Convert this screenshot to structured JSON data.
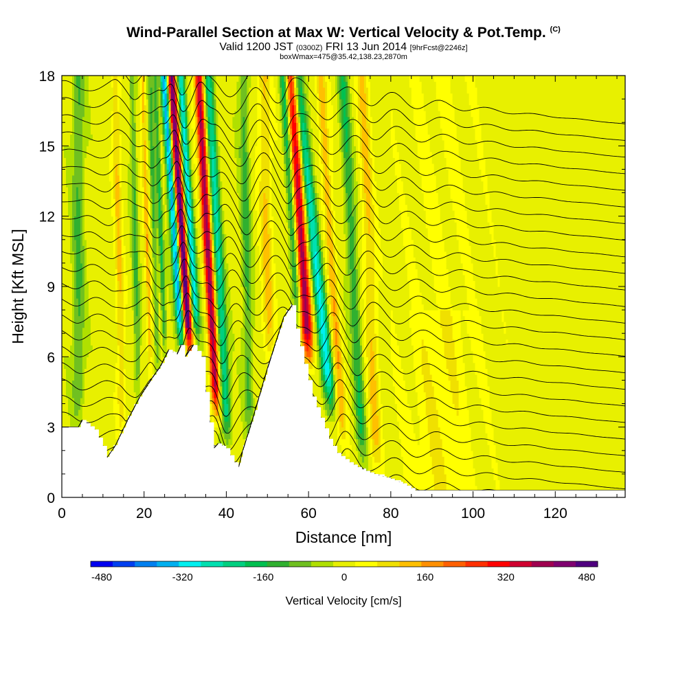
{
  "header": {
    "title_main": "Wind-Parallel Section at Max W: Vertical Velocity & Pot.Temp.",
    "title_mark": "(C)",
    "valid_prefix": "Valid 1200 JST",
    "valid_zulu": "(0300Z)",
    "valid_date": "FRI 13 Jun 2014",
    "valid_fcst": "[9hrFcst@2246z]",
    "box_line": "boxWmax=475@35.42,138.23,2870m"
  },
  "chart_data": {
    "type": "heatmap",
    "title": "Wind-Parallel Section at Max W: Vertical Velocity & Pot.Temp.",
    "xlabel": "Distance [nm]",
    "ylabel": "Height [Kft MSL]",
    "xlim": [
      0,
      137
    ],
    "ylim": [
      0,
      18
    ],
    "x_ticks": [
      0,
      20,
      40,
      60,
      80,
      100,
      120
    ],
    "y_ticks": [
      0,
      3,
      6,
      9,
      12,
      15,
      18
    ],
    "grid": false,
    "colorbar": {
      "title": "Vertical Velocity [cm/s]",
      "tick_values": [
        -480,
        -320,
        -160,
        0,
        160,
        320,
        480
      ],
      "tick_labels": [
        "-480",
        "-320",
        "-160",
        "0",
        "160",
        "320",
        "480"
      ],
      "colors": [
        "#0000f0",
        "#0040f0",
        "#0080f0",
        "#00b0f0",
        "#00f0f0",
        "#00e0b0",
        "#00d080",
        "#00c050",
        "#30b030",
        "#70c020",
        "#b0e000",
        "#e8f000",
        "#ffff00",
        "#f0e000",
        "#ffc000",
        "#ff9000",
        "#ff6000",
        "#ff3000",
        "#ff0000",
        "#d00030",
        "#a00050",
        "#800070",
        "#500080"
      ]
    },
    "terrain": [
      {
        "x": 0,
        "h": 3.0
      },
      {
        "x": 4,
        "h": 3.0
      },
      {
        "x": 5,
        "h": 3.3
      },
      {
        "x": 8,
        "h": 2.9
      },
      {
        "x": 10,
        "h": 2.2
      },
      {
        "x": 11,
        "h": 1.7
      },
      {
        "x": 13,
        "h": 2.2
      },
      {
        "x": 16,
        "h": 3.3
      },
      {
        "x": 19,
        "h": 4.3
      },
      {
        "x": 22,
        "h": 5.1
      },
      {
        "x": 24,
        "h": 5.6
      },
      {
        "x": 26,
        "h": 6.3
      },
      {
        "x": 28,
        "h": 6.1
      },
      {
        "x": 29,
        "h": 6.5
      },
      {
        "x": 30,
        "h": 6.0
      },
      {
        "x": 32,
        "h": 6.5
      },
      {
        "x": 34,
        "h": 6.0
      },
      {
        "x": 35,
        "h": 4.5
      },
      {
        "x": 36,
        "h": 3.2
      },
      {
        "x": 37,
        "h": 2.1
      },
      {
        "x": 38,
        "h": 2.3
      },
      {
        "x": 40,
        "h": 2.1
      },
      {
        "x": 42,
        "h": 1.5
      },
      {
        "x": 43,
        "h": 1.3
      },
      {
        "x": 44,
        "h": 2.0
      },
      {
        "x": 46,
        "h": 3.1
      },
      {
        "x": 48,
        "h": 4.3
      },
      {
        "x": 50,
        "h": 5.5
      },
      {
        "x": 52,
        "h": 6.6
      },
      {
        "x": 54,
        "h": 7.7
      },
      {
        "x": 56,
        "h": 8.2
      },
      {
        "x": 57,
        "h": 7.2
      },
      {
        "x": 59,
        "h": 5.7
      },
      {
        "x": 61,
        "h": 4.3
      },
      {
        "x": 63,
        "h": 3.4
      },
      {
        "x": 65,
        "h": 2.5
      },
      {
        "x": 67,
        "h": 1.9
      },
      {
        "x": 70,
        "h": 1.5
      },
      {
        "x": 73,
        "h": 1.2
      },
      {
        "x": 76,
        "h": 1.0
      },
      {
        "x": 80,
        "h": 0.8
      },
      {
        "x": 83,
        "h": 0.6
      },
      {
        "x": 86,
        "h": 0.3
      },
      {
        "x": 90,
        "h": 0.3
      },
      {
        "x": 137,
        "h": 0.3
      }
    ],
    "w_features": [
      {
        "x0": 30.0,
        "tilt": -0.38,
        "width": 1.2,
        "amp": 480
      },
      {
        "x0": 28.3,
        "tilt": -0.38,
        "width": 1.0,
        "amp": -400
      },
      {
        "x0": 32.0,
        "tilt": -0.35,
        "width": 1.0,
        "amp": -300
      },
      {
        "x0": 36.0,
        "tilt": -0.3,
        "width": 1.1,
        "amp": 380
      },
      {
        "x0": 38.4,
        "tilt": -0.3,
        "width": 1.2,
        "amp": -230
      },
      {
        "x0": 24.5,
        "tilt": -0.2,
        "width": 0.6,
        "amp": -140
      },
      {
        "x0": 21.0,
        "tilt": -0.15,
        "width": 0.6,
        "amp": 130
      },
      {
        "x0": 22.8,
        "tilt": -0.15,
        "width": 0.6,
        "amp": -120
      },
      {
        "x0": 18.0,
        "tilt": -0.1,
        "width": 0.8,
        "amp": -110
      },
      {
        "x0": 14.0,
        "tilt": -0.1,
        "width": 0.9,
        "amp": 110
      },
      {
        "x0": 59.0,
        "tilt": -0.35,
        "width": 1.5,
        "amp": 380
      },
      {
        "x0": 57.0,
        "tilt": -0.35,
        "width": 1.0,
        "amp": -200
      },
      {
        "x0": 62.5,
        "tilt": -0.6,
        "width": 1.5,
        "amp": -280
      },
      {
        "x0": 66.0,
        "tilt": -0.35,
        "width": 1.2,
        "amp": 140
      },
      {
        "x0": 71.0,
        "tilt": -0.3,
        "width": 1.3,
        "amp": -140
      },
      {
        "x0": 75.0,
        "tilt": -0.2,
        "width": 1.5,
        "amp": 110
      },
      {
        "x0": 45.0,
        "tilt": -0.1,
        "width": 1.2,
        "amp": -120
      },
      {
        "x0": 50.0,
        "tilt": -0.1,
        "width": 1.5,
        "amp": 110
      },
      {
        "x0": 4.0,
        "tilt": 0.0,
        "width": 1.5,
        "amp": -110
      }
    ],
    "theta_contours": {
      "count": 26,
      "min_height": 0.3,
      "max_height": 18
    }
  }
}
